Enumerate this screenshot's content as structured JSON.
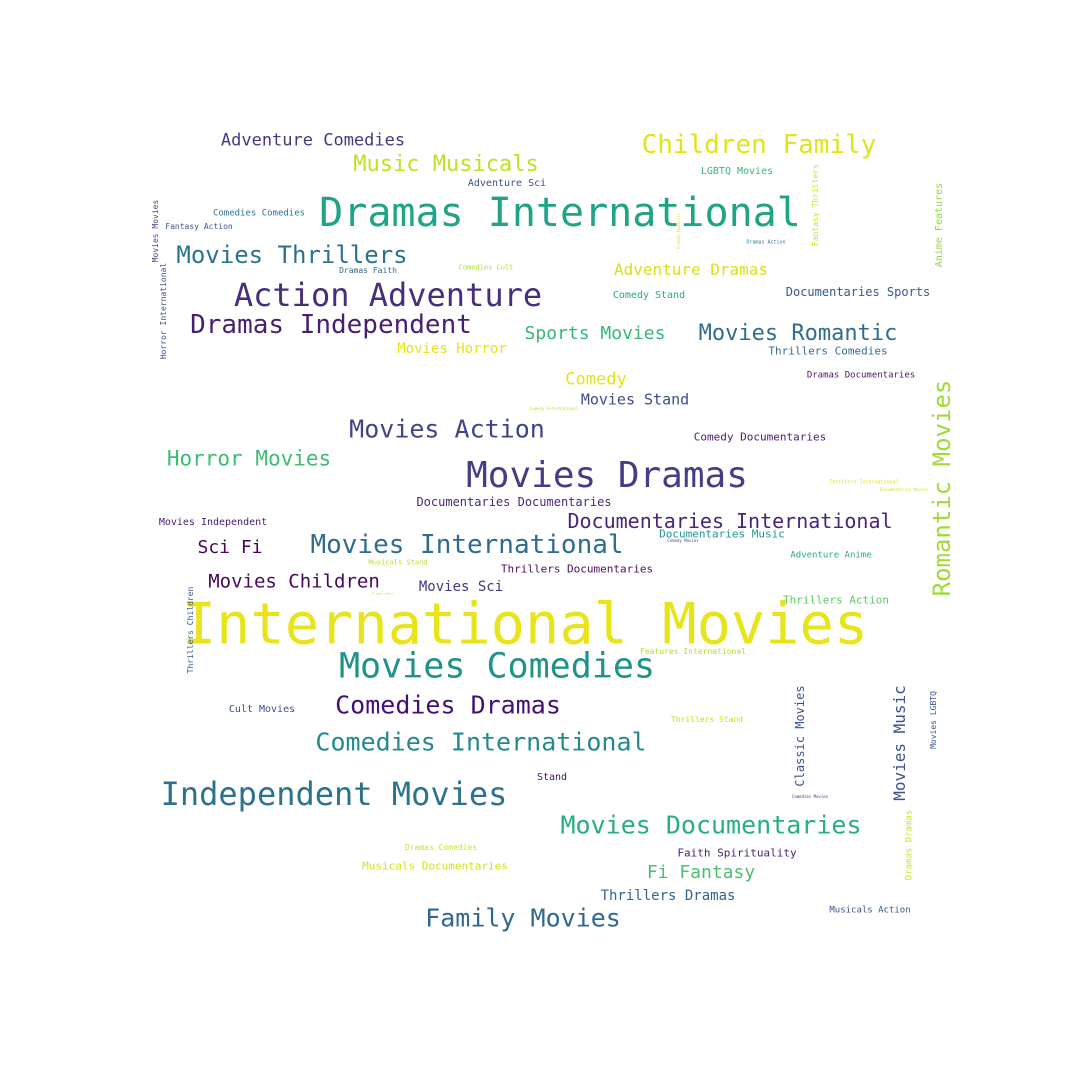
{
  "word_cloud": {
    "words": [
      {
        "text": "International Movies",
        "color": "#e8e41c"
      },
      {
        "text": "Dramas International",
        "color": "#20a386"
      },
      {
        "text": "Movies Dramas",
        "color": "#433e85"
      },
      {
        "text": "Movies Comedies",
        "color": "#21918c"
      },
      {
        "text": "Independent Movies",
        "color": "#2c728e"
      },
      {
        "text": "Action Adventure",
        "color": "#472d7b"
      },
      {
        "text": "Romantic Movies",
        "color": "#a0da39"
      },
      {
        "text": "Children Family",
        "color": "#e2e418"
      },
      {
        "text": "Movies International",
        "color": "#2f6c8e"
      },
      {
        "text": "Comedies International",
        "color": "#238a8d"
      },
      {
        "text": "Movies Documentaries",
        "color": "#28ae80"
      },
      {
        "text": "Dramas Independent",
        "color": "#481f70"
      },
      {
        "text": "Comedies Dramas",
        "color": "#440f76"
      },
      {
        "text": "Family Movies",
        "color": "#31688e"
      },
      {
        "text": "Movies Action",
        "color": "#414487"
      },
      {
        "text": "Movies Thrillers",
        "color": "#2c728e"
      },
      {
        "text": "Music Musicals",
        "color": "#c2df23"
      },
      {
        "text": "Documentaries International",
        "color": "#482576"
      },
      {
        "text": "Movies Romantic",
        "color": "#2f6c8e"
      },
      {
        "text": "Horror Movies",
        "color": "#3fbc73"
      },
      {
        "text": "Movies Children",
        "color": "#46085c"
      },
      {
        "text": "Adventure Comedies",
        "color": "#443983"
      },
      {
        "text": "Movies Music",
        "color": "#3b528b"
      },
      {
        "text": "Sports Movies",
        "color": "#35b779"
      },
      {
        "text": "Adventure Dramas",
        "color": "#d8e219"
      },
      {
        "text": "Fi Fantasy",
        "color": "#4ac16d"
      },
      {
        "text": "Sci Fi",
        "color": "#450559"
      },
      {
        "text": "Comedy",
        "color": "#e5e419"
      },
      {
        "text": "Movies Stand",
        "color": "#3e4c8a"
      },
      {
        "text": "Movies Sci",
        "color": "#453781"
      },
      {
        "text": "Thrillers Dramas",
        "color": "#33638d"
      },
      {
        "text": "Classic Movies",
        "color": "#3b528b"
      },
      {
        "text": "Documentaries Sports",
        "color": "#38588c"
      },
      {
        "text": "Documentaries Documentaries",
        "color": "#482878"
      },
      {
        "text": "Movies Horror",
        "color": "#e7e419"
      },
      {
        "text": "Thrillers Comedies",
        "color": "#2e6f8e"
      },
      {
        "text": "Comedy Documentaries",
        "color": "#481b6d"
      },
      {
        "text": "Thrillers Documentaries",
        "color": "#470e61"
      },
      {
        "text": "Documentaries Music",
        "color": "#1f968b"
      },
      {
        "text": "Faith Spirituality",
        "color": "#482173"
      },
      {
        "text": "Musicals Documentaries",
        "color": "#d0e11c"
      },
      {
        "text": "Thrillers Action",
        "color": "#5ec962"
      },
      {
        "text": "Comedy Stand",
        "color": "#23a983"
      },
      {
        "text": "Adventure Sci",
        "color": "#3d4e8a"
      },
      {
        "text": "LGBTQ Movies",
        "color": "#37b878"
      },
      {
        "text": "Cult Movies",
        "color": "#3d4d8a"
      },
      {
        "text": "Movies Independent",
        "color": "#48196b"
      },
      {
        "text": "Dramas Documentaries",
        "color": "#481467"
      },
      {
        "text": "Anime Features",
        "color": "#95d840"
      },
      {
        "text": "Movies LGBTQ",
        "color": "#39558c"
      },
      {
        "text": "Stand",
        "color": "#471063"
      },
      {
        "text": "Dramas Dramas",
        "color": "#cde11d"
      },
      {
        "text": "Fantasy Thrillers",
        "color": "#d2e21b"
      },
      {
        "text": "Musicals Action",
        "color": "#3a538b"
      },
      {
        "text": "Adventure Anime",
        "color": "#27ad81"
      },
      {
        "text": "Comedies Comedies",
        "color": "#2d718e"
      },
      {
        "text": "Features International",
        "color": "#b5de2b"
      },
      {
        "text": "Thrillers Stand",
        "color": "#c8e020"
      },
      {
        "text": "Dramas Comedies",
        "color": "#d5e21a"
      },
      {
        "text": "Thrillers Children",
        "color": "#38598c"
      },
      {
        "text": "Movies Movies",
        "color": "#3e4989"
      },
      {
        "text": "Dramas Faith",
        "color": "#31668e"
      },
      {
        "text": "Fantasy Action",
        "color": "#3b528b"
      },
      {
        "text": "Comedies Cult",
        "color": "#b0dd2f"
      },
      {
        "text": "Musicals Stand",
        "color": "#b8de29"
      },
      {
        "text": "Dramas Action",
        "color": "#2a788e"
      },
      {
        "text": "Thrillers International",
        "color": "#d8e219"
      },
      {
        "text": "Documentaries Movies",
        "color": "#d2e21b"
      },
      {
        "text": "Comedy Movies",
        "color": "#3e4989"
      },
      {
        "text": "Comedies Movies",
        "color": "#453781"
      },
      {
        "text": "Comedy International",
        "color": "#cde11d"
      },
      {
        "text": "Dramas Stand",
        "color": "#d5e21a"
      },
      {
        "text": "Horror International",
        "color": "#3b528b"
      },
      {
        "text": "Dramas Romantic",
        "color": "#e2e418"
      }
    ]
  }
}
